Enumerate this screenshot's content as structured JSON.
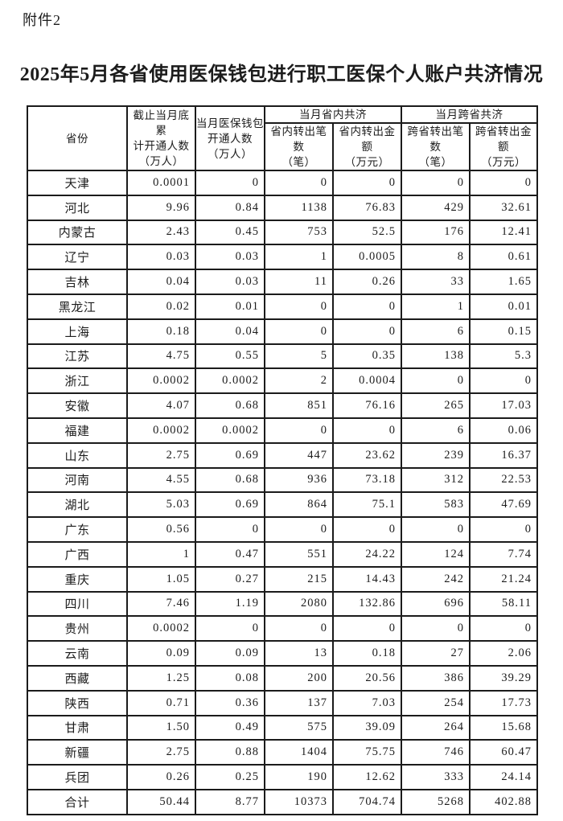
{
  "page": {
    "attachment_label": "附件2",
    "title": "2025年5月各省使用医保钱包进行职工医保个人账户共济情况"
  },
  "colors": {
    "text": "#1c1c1c",
    "border": "#1b1b1b",
    "background": "#ffffff"
  },
  "table": {
    "columns": {
      "province": "省份",
      "cumulative_opened": "截止当月底累\n计开通人数\n（万人）",
      "month_opened": "当月医保钱包\n开通人数\n（万人）",
      "intra_province_group": "当月省内共济",
      "cross_province_group": "当月跨省共济",
      "intra_count": "省内转出笔数\n（笔）",
      "intra_amount": "省内转出金额\n（万元）",
      "cross_count": "跨省转出笔数\n（笔）",
      "cross_amount": "跨省转出金额\n（万元）"
    },
    "rows": [
      {
        "province": "天津",
        "values": [
          "0.0001",
          "0",
          "0",
          "0",
          "0",
          "0"
        ]
      },
      {
        "province": "河北",
        "values": [
          "9.96",
          "0.84",
          "1138",
          "76.83",
          "429",
          "32.61"
        ]
      },
      {
        "province": "内蒙古",
        "values": [
          "2.43",
          "0.45",
          "753",
          "52.5",
          "176",
          "12.41"
        ]
      },
      {
        "province": "辽宁",
        "values": [
          "0.03",
          "0.03",
          "1",
          "0.0005",
          "8",
          "0.61"
        ]
      },
      {
        "province": "吉林",
        "values": [
          "0.04",
          "0.03",
          "11",
          "0.26",
          "33",
          "1.65"
        ]
      },
      {
        "province": "黑龙江",
        "values": [
          "0.02",
          "0.01",
          "0",
          "0",
          "1",
          "0.01"
        ]
      },
      {
        "province": "上海",
        "values": [
          "0.18",
          "0.04",
          "0",
          "0",
          "6",
          "0.15"
        ]
      },
      {
        "province": "江苏",
        "values": [
          "4.75",
          "0.55",
          "5",
          "0.35",
          "138",
          "5.3"
        ]
      },
      {
        "province": "浙江",
        "values": [
          "0.0002",
          "0.0002",
          "2",
          "0.0004",
          "0",
          "0"
        ]
      },
      {
        "province": "安徽",
        "values": [
          "4.07",
          "0.68",
          "851",
          "76.16",
          "265",
          "17.03"
        ]
      },
      {
        "province": "福建",
        "values": [
          "0.0002",
          "0.0002",
          "0",
          "0",
          "6",
          "0.06"
        ]
      },
      {
        "province": "山东",
        "values": [
          "2.75",
          "0.69",
          "447",
          "23.62",
          "239",
          "16.37"
        ]
      },
      {
        "province": "河南",
        "values": [
          "4.55",
          "0.68",
          "936",
          "73.18",
          "312",
          "22.53"
        ]
      },
      {
        "province": "湖北",
        "values": [
          "5.03",
          "0.69",
          "864",
          "75.1",
          "583",
          "47.69"
        ]
      },
      {
        "province": "广东",
        "values": [
          "0.56",
          "0",
          "0",
          "0",
          "0",
          "0"
        ]
      },
      {
        "province": "广西",
        "values": [
          "1",
          "0.47",
          "551",
          "24.22",
          "124",
          "7.74"
        ]
      },
      {
        "province": "重庆",
        "values": [
          "1.05",
          "0.27",
          "215",
          "14.43",
          "242",
          "21.24"
        ]
      },
      {
        "province": "四川",
        "values": [
          "7.46",
          "1.19",
          "2080",
          "132.86",
          "696",
          "58.11"
        ]
      },
      {
        "province": "贵州",
        "values": [
          "0.0002",
          "0",
          "0",
          "0",
          "0",
          "0"
        ]
      },
      {
        "province": "云南",
        "values": [
          "0.09",
          "0.09",
          "13",
          "0.18",
          "27",
          "2.06"
        ]
      },
      {
        "province": "西藏",
        "values": [
          "1.25",
          "0.08",
          "200",
          "20.56",
          "386",
          "39.29"
        ]
      },
      {
        "province": "陕西",
        "values": [
          "0.71",
          "0.36",
          "137",
          "7.03",
          "254",
          "17.73"
        ]
      },
      {
        "province": "甘肃",
        "values": [
          "1.50",
          "0.49",
          "575",
          "39.09",
          "264",
          "15.68"
        ]
      },
      {
        "province": "新疆",
        "values": [
          "2.75",
          "0.88",
          "1404",
          "75.75",
          "746",
          "60.47"
        ]
      },
      {
        "province": "兵团",
        "values": [
          "0.26",
          "0.25",
          "190",
          "12.62",
          "333",
          "24.14"
        ]
      },
      {
        "province": "合计",
        "values": [
          "50.44",
          "8.77",
          "10373",
          "704.74",
          "5268",
          "402.88"
        ]
      }
    ]
  }
}
